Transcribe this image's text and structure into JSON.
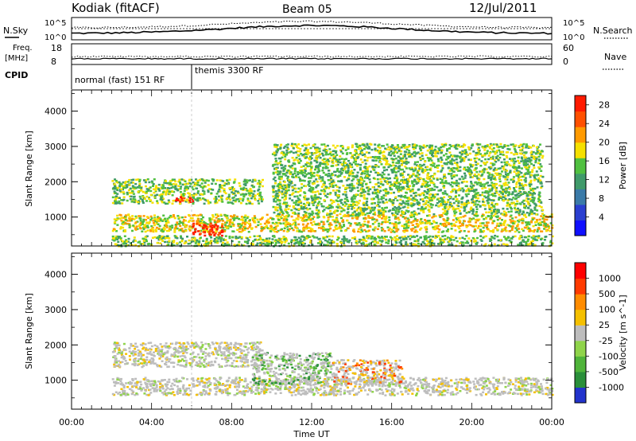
{
  "header": {
    "title": "Kodiak (fitACF)",
    "beam": "Beam 05",
    "date": "12/Jul/2011"
  },
  "status_panels": {
    "nsky_label": "N.Sky",
    "nsearch_label": "N.Search",
    "freq_label": "Freq.",
    "freq_unit": "[MHz]",
    "nave_label": "Nave",
    "cpid_label": "CPID",
    "left_ticks_top": [
      "10^5",
      "10^0"
    ],
    "right_ticks_top": [
      "10^5",
      "10^0"
    ],
    "left_ticks_freq": [
      "18",
      "8"
    ],
    "right_ticks_nave": [
      "60",
      "0"
    ],
    "cpid_segments": [
      {
        "label": "normal (fast) 151 RF",
        "start_hour": 0,
        "end_hour": 6
      },
      {
        "label": "themis 3300 RF",
        "start_hour": 6,
        "end_hour": 24
      }
    ]
  },
  "axes": {
    "xlabel": "Time UT",
    "ylabel": "Slant Range [km]",
    "x_ticks": [
      "00:00",
      "04:00",
      "08:00",
      "12:00",
      "16:00",
      "20:00",
      "00:00"
    ],
    "x_tick_hours": [
      0,
      4,
      8,
      12,
      16,
      20,
      24
    ],
    "xlim_hours": [
      0,
      24
    ],
    "y_ticks": [
      "1000",
      "2000",
      "3000",
      "4000"
    ],
    "y_tick_values": [
      1000,
      2000,
      3000,
      4000
    ],
    "ylim_km": [
      180,
      4600
    ]
  },
  "chart_data": [
    {
      "type": "heatmap",
      "panel": "power",
      "colorbar_label": "Power [dB]",
      "colorbar_ticks": [
        "4",
        "8",
        "12",
        "16",
        "20",
        "24",
        "28"
      ],
      "color_levels": [
        "#1010ff",
        "#2a3fd0",
        "#3a7aa8",
        "#3f9a6a",
        "#50c040",
        "#f5e000",
        "#ff9a00",
        "#ff5000",
        "#ff1a00"
      ],
      "colorbar_range": [
        0,
        30
      ],
      "features": [
        {
          "name": "near-range echoes",
          "start_hour": 2.0,
          "end_hour": 24.0,
          "range_km": [
            200,
            500
          ],
          "level": 4
        },
        {
          "name": "main band",
          "start_hour": 2.0,
          "end_hour": 24.0,
          "range_km": [
            600,
            1100
          ],
          "level": 5
        },
        {
          "name": "mid band",
          "start_hour": 2.0,
          "end_hour": 9.5,
          "range_km": [
            1400,
            2100
          ],
          "level": 4
        },
        {
          "name": "strong patch",
          "start_hour": 5.0,
          "end_hour": 6.0,
          "range_km": [
            1450,
            1600
          ],
          "level": 8
        },
        {
          "name": "afternoon arcs",
          "start_hour": 10.0,
          "end_hour": 23.5,
          "range_km": [
            1100,
            3100
          ],
          "level": 4
        },
        {
          "name": "intense near range",
          "start_hour": 6.0,
          "end_hour": 7.5,
          "range_km": [
            500,
            850
          ],
          "level": 8
        }
      ]
    },
    {
      "type": "heatmap",
      "panel": "velocity",
      "colorbar_label": "Velocity [m s^-1]",
      "colorbar_ticks": [
        "1000",
        "500",
        "100",
        "25",
        "-25",
        "-100",
        "-500",
        "-1000"
      ],
      "color_levels": [
        "#2233cc",
        "#2a8f3a",
        "#4fb43a",
        "#8fd44a",
        "#bdbdbd",
        "#f5c000",
        "#ff8c00",
        "#ff3a00",
        "#ff0000"
      ],
      "features": [
        {
          "name": "ground scatter band",
          "start_hour": 2.0,
          "end_hour": 24.0,
          "range_km": [
            600,
            1100
          ],
          "level": 4
        },
        {
          "name": "mid ground scatter",
          "start_hour": 2.0,
          "end_hour": 9.5,
          "range_km": [
            1400,
            2100
          ],
          "level": 4
        },
        {
          "name": "green echoes",
          "start_hour": 9.0,
          "end_hour": 13.0,
          "range_km": [
            900,
            1800
          ],
          "level": 2
        },
        {
          "name": "orange echoes",
          "start_hour": 13.0,
          "end_hour": 16.5,
          "range_km": [
            900,
            1600
          ],
          "level": 6
        }
      ]
    }
  ]
}
